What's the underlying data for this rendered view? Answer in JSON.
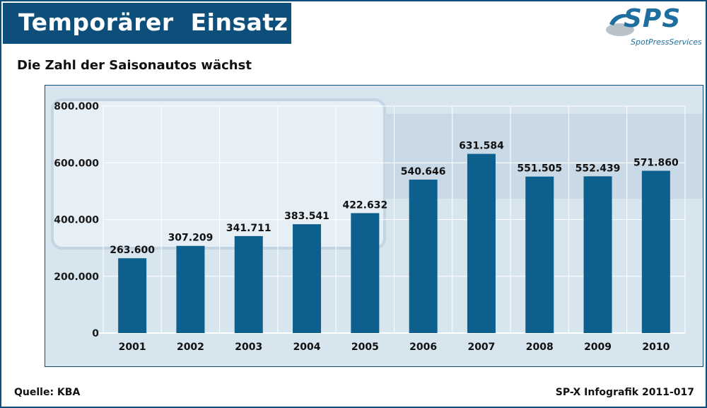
{
  "header": {
    "title": "Temporärer  Einsatz",
    "subtitle": "Die Zahl der Saisonautos wächst"
  },
  "logo": {
    "text": "SPS",
    "subtext": "SpotPressServices"
  },
  "footer": {
    "source": "Quelle: KBA",
    "credit": "SP-X Infografik 2011-017"
  },
  "colors": {
    "accent": "#0d4f7a",
    "bar": "#0d5f8e",
    "panel": "#d5e4ee"
  },
  "chart_data": {
    "type": "bar",
    "categories": [
      "2001",
      "2002",
      "2003",
      "2004",
      "2005",
      "2006",
      "2007",
      "2008",
      "2009",
      "2010"
    ],
    "values": [
      263600,
      307209,
      341711,
      383541,
      422632,
      540646,
      631584,
      551505,
      552439,
      571860
    ],
    "value_labels": [
      "263.600",
      "307.209",
      "341.711",
      "383.541",
      "422.632",
      "540.646",
      "631.584",
      "551.505",
      "552.439",
      "571.860"
    ],
    "title": "Die Zahl der Saisonautos wächst",
    "xlabel": "",
    "ylabel": "",
    "ylim": [
      0,
      800000
    ],
    "yticks": [
      0,
      200000,
      400000,
      600000,
      800000
    ],
    "ytick_labels": [
      "0",
      "200.000",
      "400.000",
      "600.000",
      "800.000"
    ],
    "grid": true,
    "legend": "none"
  }
}
